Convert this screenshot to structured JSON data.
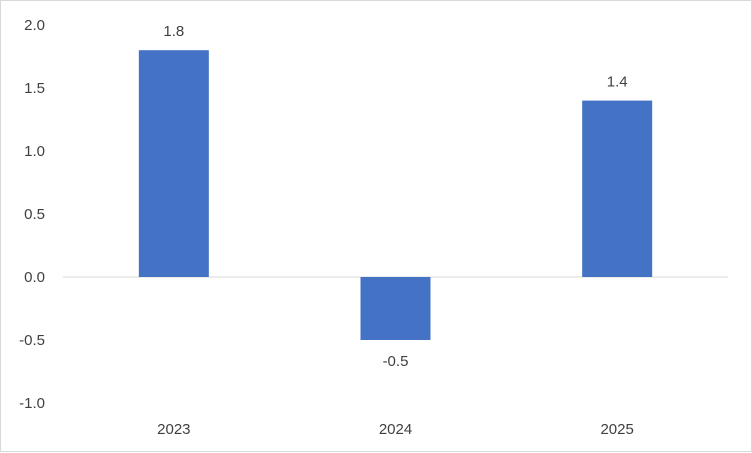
{
  "chart_data": {
    "type": "bar",
    "categories": [
      "2023",
      "2024",
      "2025"
    ],
    "values": [
      1.8,
      -0.5,
      1.4
    ],
    "data_labels": [
      "1.8",
      "-0.5",
      "1.4"
    ],
    "y_ticks": [
      "2.0",
      "1.5",
      "1.0",
      "0.5",
      "0.0",
      "-0.5",
      "-1.0"
    ],
    "y_tick_values": [
      2.0,
      1.5,
      1.0,
      0.5,
      0.0,
      -0.5,
      -1.0
    ],
    "ylim": [
      -1.0,
      2.0
    ],
    "title": "",
    "xlabel": "",
    "ylabel": "",
    "grid": false,
    "legend": "none",
    "bar_color": "#4472c4",
    "axis_color": "#d9d9d9"
  }
}
